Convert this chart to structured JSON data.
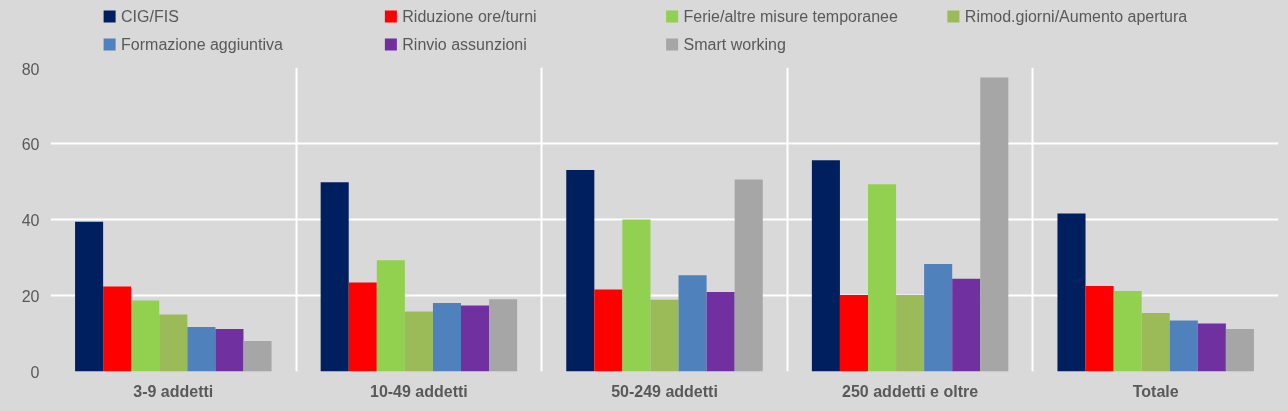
{
  "chart_data": {
    "type": "bar",
    "categories": [
      "3-9 addetti",
      "10-49 addetti",
      "50-249 addetti",
      "250 addetti e oltre",
      "Totale"
    ],
    "series": [
      {
        "name": "CIG/FIS",
        "color": "#001f5f",
        "values": [
          39.4,
          49.8,
          53.0,
          55.6,
          41.6
        ]
      },
      {
        "name": "Riduzione ore/turni",
        "color": "#ff0000",
        "values": [
          22.4,
          23.4,
          21.6,
          20.1,
          22.5
        ]
      },
      {
        "name": "Ferie/altre misure temporanee",
        "color": "#92d050",
        "values": [
          18.7,
          29.3,
          40.0,
          49.3,
          21.2
        ]
      },
      {
        "name": "Rimod.giorni/Aumento apertura",
        "color": "#9bbb59",
        "values": [
          15.0,
          15.8,
          18.9,
          20.1,
          15.4
        ]
      },
      {
        "name": "Formazione aggiuntiva",
        "color": "#4f81bd",
        "values": [
          11.7,
          18.0,
          25.3,
          28.3,
          13.4
        ]
      },
      {
        "name": "Rinvio assunzioni",
        "color": "#7030a0",
        "values": [
          11.2,
          17.4,
          20.9,
          24.4,
          12.6
        ]
      },
      {
        "name": "Smart working",
        "color": "#a6a6a6",
        "values": [
          8.0,
          19.0,
          50.5,
          77.4,
          11.2
        ]
      }
    ],
    "ylim": [
      0,
      80
    ],
    "yticks": [
      0,
      20,
      40,
      60,
      80
    ],
    "grid": true,
    "legend": "top"
  }
}
